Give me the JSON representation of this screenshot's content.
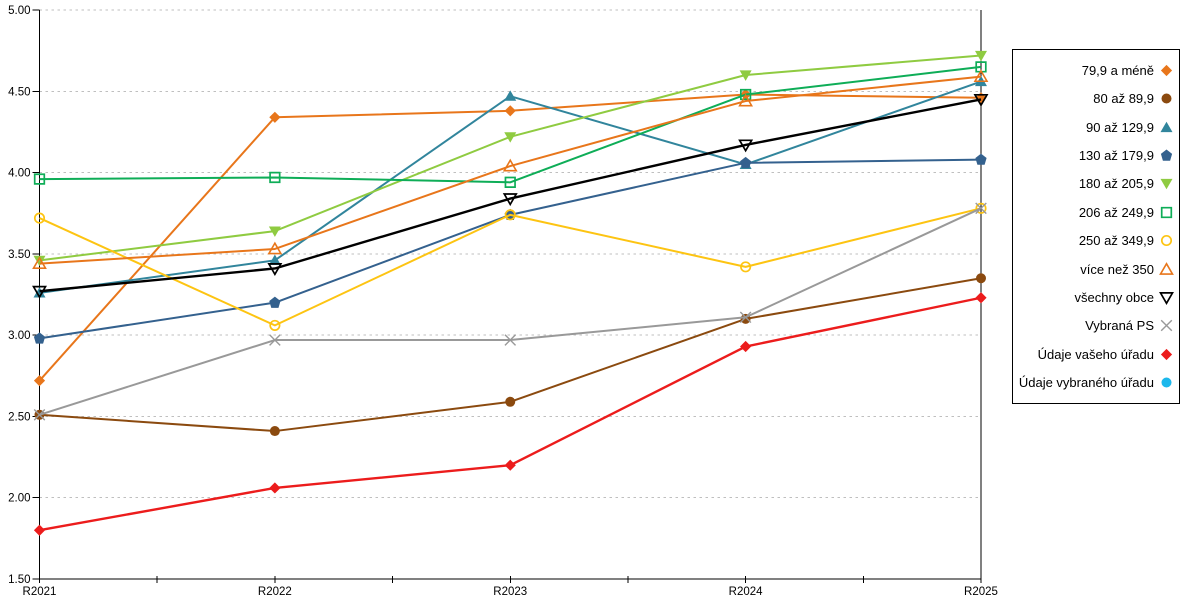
{
  "chart_data": {
    "type": "line",
    "title": "",
    "xlabel": "",
    "ylabel": "",
    "categories": [
      "R2021",
      "R2022",
      "R2023",
      "R2024",
      "R2025"
    ],
    "ylim": [
      1.5,
      5.0
    ],
    "ytick_step": 0.5,
    "ytick_labels": [
      "1.50",
      "2.00",
      "2.50",
      "3.00",
      "3.50",
      "4.00",
      "4.50",
      "5.00"
    ],
    "grid": "horizontal-dashed",
    "legend_position": "right-outside",
    "series": [
      {
        "name": "79,9 a méně",
        "color": "#E8761B",
        "marker": "diamond",
        "values": [
          2.72,
          4.34,
          4.38,
          4.48,
          4.46
        ]
      },
      {
        "name": "80 až 89,9",
        "color": "#8B4A0F",
        "marker": "circle",
        "values": [
          2.51,
          2.41,
          2.59,
          3.1,
          3.35
        ]
      },
      {
        "name": "90 až 129,9",
        "color": "#31859C",
        "marker": "triangle-up",
        "values": [
          3.26,
          3.46,
          4.47,
          4.05,
          4.56
        ]
      },
      {
        "name": "130 až 179,9",
        "color": "#34618E",
        "marker": "pentagon",
        "values": [
          2.98,
          3.2,
          3.74,
          4.06,
          4.08
        ]
      },
      {
        "name": "180 až 205,9",
        "color": "#8FCB41",
        "marker": "triangle-down",
        "values": [
          3.46,
          3.64,
          4.22,
          4.6,
          4.72
        ]
      },
      {
        "name": "206 až 249,9",
        "color": "#0EAD57",
        "marker": "square-hollow",
        "values": [
          3.96,
          3.97,
          3.94,
          4.48,
          4.65
        ]
      },
      {
        "name": "250 až 349,9",
        "color": "#FDC412",
        "marker": "circle-hollow",
        "values": [
          3.72,
          3.06,
          3.74,
          3.42,
          3.78
        ]
      },
      {
        "name": "více než 350",
        "color": "#E8761B",
        "marker": "triangle-up-hollow",
        "values": [
          3.44,
          3.53,
          4.04,
          4.44,
          4.59
        ]
      },
      {
        "name": "všechny obce",
        "color": "#000000",
        "marker": "triangle-down-hollow",
        "values": [
          3.27,
          3.41,
          3.84,
          4.17,
          4.45
        ]
      },
      {
        "name": "Vybraná PS",
        "color": "#999999",
        "marker": "x-cross",
        "values": [
          2.51,
          2.97,
          2.97,
          3.11,
          3.78
        ]
      },
      {
        "name": "Údaje vašeho úřadu",
        "color": "#EC1C1C",
        "marker": "diamond",
        "values": [
          1.8,
          2.06,
          2.2,
          2.93,
          3.23
        ]
      },
      {
        "name": "Údaje vybraného úřadu",
        "color": "#1CB8EC",
        "marker": "circle",
        "values": null
      }
    ]
  }
}
